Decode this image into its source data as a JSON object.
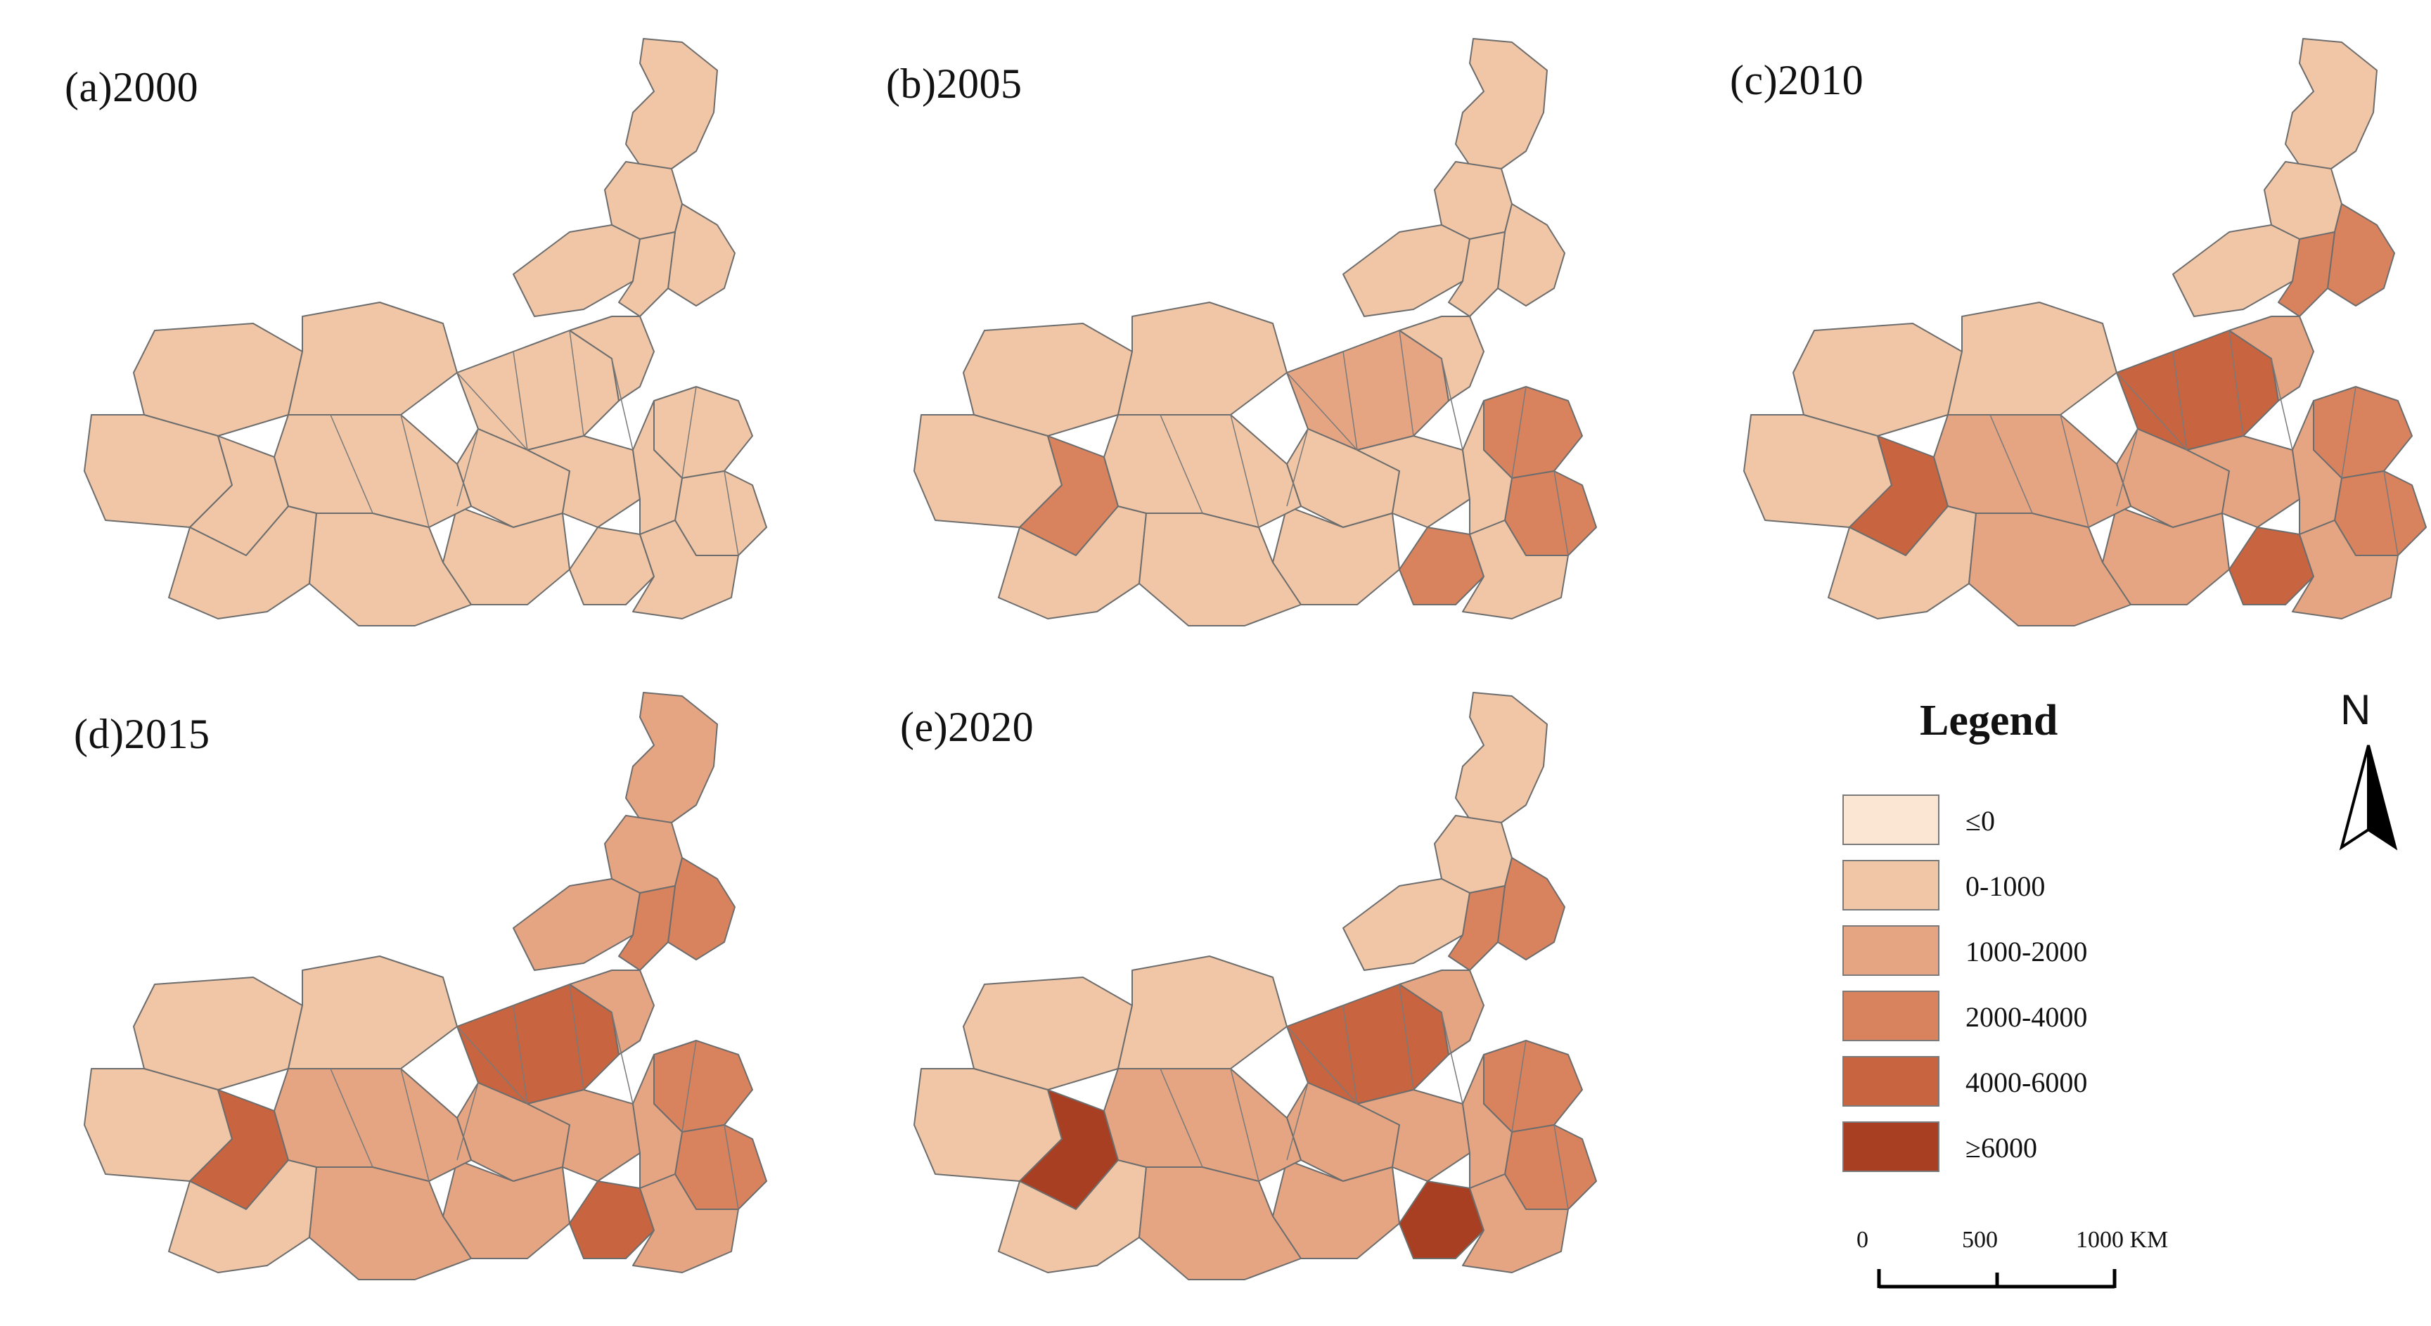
{
  "panels": [
    {
      "id": "a",
      "title": "(a)2000",
      "shades": {
        "north": 1,
        "east": 1,
        "center": 1,
        "west": 1,
        "core": 1,
        "east_dense": 1,
        "south_spot": 1
      }
    },
    {
      "id": "b",
      "title": "(b)2005",
      "shades": {
        "north": 1,
        "east": 1,
        "center": 2,
        "west": 1,
        "core": 1,
        "east_dense": 3,
        "south_spot": 3
      }
    },
    {
      "id": "c",
      "title": "(c)2010",
      "shades": {
        "north": 1,
        "east": 3,
        "center": 4,
        "west": 1,
        "core": 2,
        "east_dense": 3,
        "south_spot": 4
      }
    },
    {
      "id": "d",
      "title": "(d)2015",
      "shades": {
        "north": 2,
        "east": 3,
        "center": 4,
        "west": 1,
        "core": 2,
        "east_dense": 3,
        "south_spot": 4
      }
    },
    {
      "id": "e",
      "title": "(e)2020",
      "shades": {
        "north": 1,
        "east": 3,
        "center": 4,
        "west": 1,
        "core": 2,
        "east_dense": 3,
        "south_spot": 5
      }
    }
  ],
  "legend": {
    "title": "Legend",
    "classes": [
      {
        "label": "≤0",
        "color": "#fbe6d3"
      },
      {
        "label": "0-1000",
        "color": "#f0c6a6"
      },
      {
        "label": "1000-2000",
        "color": "#e5a583"
      },
      {
        "label": "2000-4000",
        "color": "#d9825e"
      },
      {
        "label": "4000-6000",
        "color": "#c8643f"
      },
      {
        "label": "≥6000",
        "color": "#a83f22"
      }
    ]
  },
  "north_arrow": {
    "letter": "N"
  },
  "scale_bar": {
    "labels": [
      "0",
      "500",
      "1000 KM"
    ]
  }
}
